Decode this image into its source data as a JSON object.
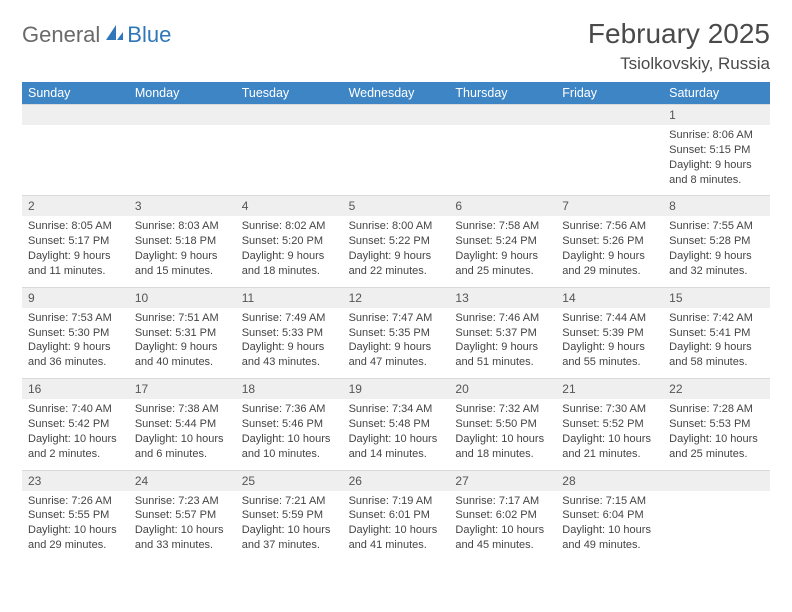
{
  "logo": {
    "text1": "General",
    "text2": "Blue"
  },
  "title": "February 2025",
  "location": "Tsiolkovskiy, Russia",
  "colors": {
    "header_bg": "#3e85c6",
    "header_fg": "#ffffff",
    "daynum_bg": "#efefef",
    "body_fg": "#444444",
    "logo_blue": "#2f77b8",
    "logo_gray": "#6a6a6a"
  },
  "day_headers": [
    "Sunday",
    "Monday",
    "Tuesday",
    "Wednesday",
    "Thursday",
    "Friday",
    "Saturday"
  ],
  "weeks": [
    [
      null,
      null,
      null,
      null,
      null,
      null,
      {
        "n": "1",
        "sunrise": "8:06 AM",
        "sunset": "5:15 PM",
        "daylight": "9 hours and 8 minutes."
      }
    ],
    [
      {
        "n": "2",
        "sunrise": "8:05 AM",
        "sunset": "5:17 PM",
        "daylight": "9 hours and 11 minutes."
      },
      {
        "n": "3",
        "sunrise": "8:03 AM",
        "sunset": "5:18 PM",
        "daylight": "9 hours and 15 minutes."
      },
      {
        "n": "4",
        "sunrise": "8:02 AM",
        "sunset": "5:20 PM",
        "daylight": "9 hours and 18 minutes."
      },
      {
        "n": "5",
        "sunrise": "8:00 AM",
        "sunset": "5:22 PM",
        "daylight": "9 hours and 22 minutes."
      },
      {
        "n": "6",
        "sunrise": "7:58 AM",
        "sunset": "5:24 PM",
        "daylight": "9 hours and 25 minutes."
      },
      {
        "n": "7",
        "sunrise": "7:56 AM",
        "sunset": "5:26 PM",
        "daylight": "9 hours and 29 minutes."
      },
      {
        "n": "8",
        "sunrise": "7:55 AM",
        "sunset": "5:28 PM",
        "daylight": "9 hours and 32 minutes."
      }
    ],
    [
      {
        "n": "9",
        "sunrise": "7:53 AM",
        "sunset": "5:30 PM",
        "daylight": "9 hours and 36 minutes."
      },
      {
        "n": "10",
        "sunrise": "7:51 AM",
        "sunset": "5:31 PM",
        "daylight": "9 hours and 40 minutes."
      },
      {
        "n": "11",
        "sunrise": "7:49 AM",
        "sunset": "5:33 PM",
        "daylight": "9 hours and 43 minutes."
      },
      {
        "n": "12",
        "sunrise": "7:47 AM",
        "sunset": "5:35 PM",
        "daylight": "9 hours and 47 minutes."
      },
      {
        "n": "13",
        "sunrise": "7:46 AM",
        "sunset": "5:37 PM",
        "daylight": "9 hours and 51 minutes."
      },
      {
        "n": "14",
        "sunrise": "7:44 AM",
        "sunset": "5:39 PM",
        "daylight": "9 hours and 55 minutes."
      },
      {
        "n": "15",
        "sunrise": "7:42 AM",
        "sunset": "5:41 PM",
        "daylight": "9 hours and 58 minutes."
      }
    ],
    [
      {
        "n": "16",
        "sunrise": "7:40 AM",
        "sunset": "5:42 PM",
        "daylight": "10 hours and 2 minutes."
      },
      {
        "n": "17",
        "sunrise": "7:38 AM",
        "sunset": "5:44 PM",
        "daylight": "10 hours and 6 minutes."
      },
      {
        "n": "18",
        "sunrise": "7:36 AM",
        "sunset": "5:46 PM",
        "daylight": "10 hours and 10 minutes."
      },
      {
        "n": "19",
        "sunrise": "7:34 AM",
        "sunset": "5:48 PM",
        "daylight": "10 hours and 14 minutes."
      },
      {
        "n": "20",
        "sunrise": "7:32 AM",
        "sunset": "5:50 PM",
        "daylight": "10 hours and 18 minutes."
      },
      {
        "n": "21",
        "sunrise": "7:30 AM",
        "sunset": "5:52 PM",
        "daylight": "10 hours and 21 minutes."
      },
      {
        "n": "22",
        "sunrise": "7:28 AM",
        "sunset": "5:53 PM",
        "daylight": "10 hours and 25 minutes."
      }
    ],
    [
      {
        "n": "23",
        "sunrise": "7:26 AM",
        "sunset": "5:55 PM",
        "daylight": "10 hours and 29 minutes."
      },
      {
        "n": "24",
        "sunrise": "7:23 AM",
        "sunset": "5:57 PM",
        "daylight": "10 hours and 33 minutes."
      },
      {
        "n": "25",
        "sunrise": "7:21 AM",
        "sunset": "5:59 PM",
        "daylight": "10 hours and 37 minutes."
      },
      {
        "n": "26",
        "sunrise": "7:19 AM",
        "sunset": "6:01 PM",
        "daylight": "10 hours and 41 minutes."
      },
      {
        "n": "27",
        "sunrise": "7:17 AM",
        "sunset": "6:02 PM",
        "daylight": "10 hours and 45 minutes."
      },
      {
        "n": "28",
        "sunrise": "7:15 AM",
        "sunset": "6:04 PM",
        "daylight": "10 hours and 49 minutes."
      },
      null
    ]
  ],
  "labels": {
    "sunrise": "Sunrise:",
    "sunset": "Sunset:",
    "daylight": "Daylight:"
  }
}
